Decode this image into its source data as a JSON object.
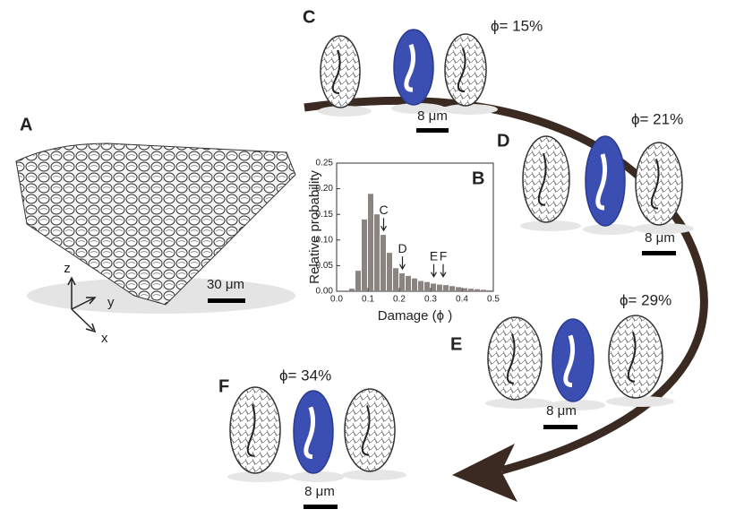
{
  "panels": {
    "A": {
      "label": "A",
      "scale_bar": "30 μm",
      "axes": [
        "z",
        "y",
        "x"
      ]
    },
    "C": {
      "label": "C",
      "phi": "ϕ= 15%",
      "scale_bar": "8 μm"
    },
    "D": {
      "label": "D",
      "phi": "ϕ= 21%",
      "scale_bar": "8 μm"
    },
    "E": {
      "label": "E",
      "phi": "ϕ= 29%",
      "scale_bar": "8 μm"
    },
    "F": {
      "label": "F",
      "phi": "ϕ= 34%",
      "scale_bar": "8 μm"
    }
  },
  "chart_data": {
    "type": "histogram",
    "panel_label": "B",
    "xlabel": "Damage (ϕ )",
    "ylabel": "Relative probability",
    "bins": [
      0.04,
      0.06,
      0.08,
      0.1,
      0.12,
      0.14,
      0.16,
      0.18,
      0.2,
      0.22,
      0.24,
      0.26,
      0.28,
      0.3,
      0.32,
      0.34,
      0.36,
      0.38,
      0.4,
      0.42,
      0.44,
      0.46,
      0.48,
      0.5
    ],
    "values": [
      0.005,
      0.04,
      0.14,
      0.19,
      0.15,
      0.11,
      0.075,
      0.045,
      0.035,
      0.03,
      0.025,
      0.02,
      0.018,
      0.015,
      0.013,
      0.012,
      0.01,
      0.008,
      0.006,
      0.005,
      0.004,
      0.003,
      0.002
    ],
    "color": "#8c8480",
    "xlim": [
      0,
      0.5
    ],
    "xticks": [
      {
        "value": 0,
        "label": "0.0"
      },
      0.1,
      0.2,
      0.3,
      0.4,
      0.5
    ],
    "ylim": [
      0,
      0.25
    ],
    "yticks": [
      {
        "value": 0,
        "label": "0.00"
      },
      0.05,
      {
        "value": 0.1,
        "label": "0.10"
      },
      0.15,
      {
        "value": 0.2,
        "label": "0.20"
      },
      0.25
    ],
    "annotations": [
      {
        "text": "C",
        "x": 0.15,
        "y": 0.115
      },
      {
        "text": "D",
        "x": 0.21,
        "y": 0.04
      },
      {
        "text": "E",
        "x": 0.31,
        "y": 0.025
      },
      {
        "text": "F",
        "x": 0.34,
        "y": 0.025
      }
    ]
  }
}
